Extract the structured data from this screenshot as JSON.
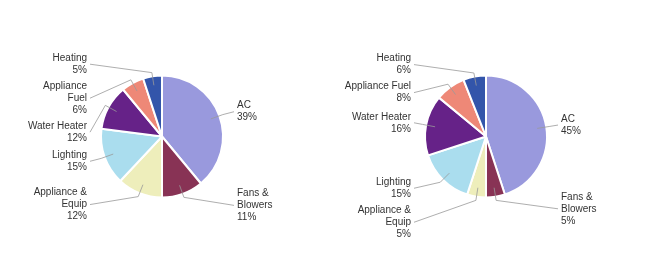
{
  "chart_data": [
    {
      "type": "pie",
      "categories": [
        "AC",
        "Fans &\nBlowers",
        "Appliance &\nEquip",
        "Lighting",
        "Water Heater",
        "Appliance\nFuel",
        "Heating"
      ],
      "values": [
        39,
        11,
        12,
        15,
        12,
        6,
        5
      ],
      "value_labels": [
        "39%",
        "11%",
        "12%",
        "15%",
        "12%",
        "6%",
        "5%"
      ],
      "colors": [
        "#9999DD",
        "#883355",
        "#EEEEBB",
        "#AADDEE",
        "#662288",
        "#EE8877",
        "#3355AA"
      ],
      "data_labels": true
    },
    {
      "type": "pie",
      "categories": [
        "AC",
        "Fans &\nBlowers",
        "Appliance &\nEquip",
        "Lighting",
        "Water Heater",
        "Appliance Fuel",
        "Heating"
      ],
      "values": [
        45,
        5,
        5,
        15,
        16,
        8,
        6
      ],
      "value_labels": [
        "45%",
        "5%",
        "5%",
        "15%",
        "16%",
        "8%",
        "6%"
      ],
      "colors": [
        "#9999DD",
        "#883355",
        "#EEEEBB",
        "#AADDEE",
        "#662288",
        "#EE8877",
        "#3355AA"
      ],
      "data_labels": true
    }
  ]
}
